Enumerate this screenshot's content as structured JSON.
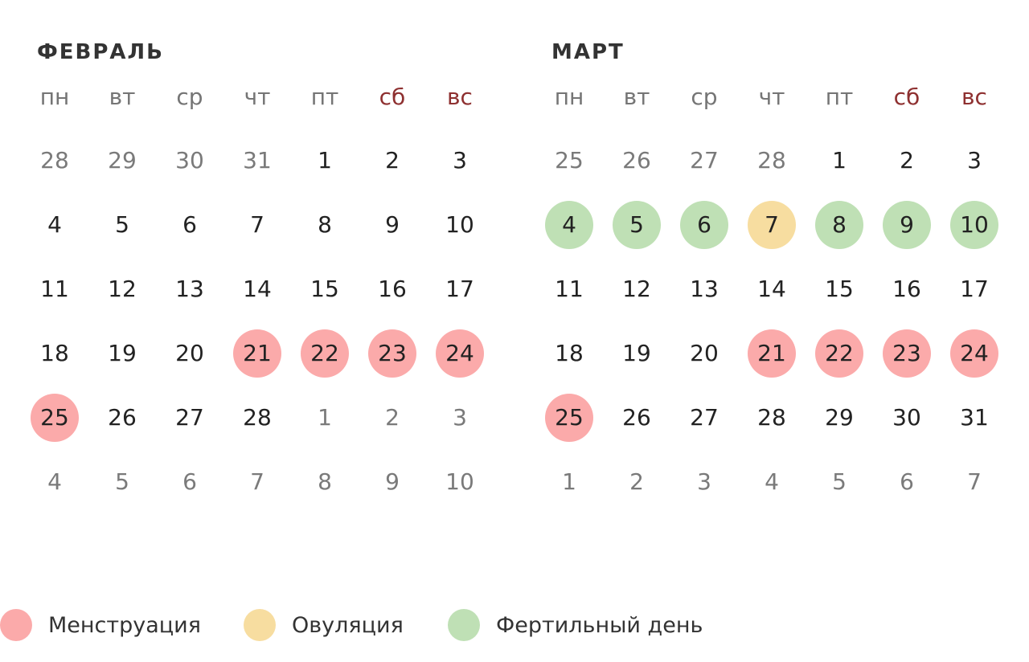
{
  "colors": {
    "menstruation": "#fbaaaa",
    "ovulation": "#f7dda0",
    "fertile": "#bfe0b5"
  },
  "months": [
    {
      "title": "ФЕВРАЛЬ",
      "weekdays": [
        "пн",
        "вт",
        "ср",
        "чт",
        "пт",
        "сб",
        "вс"
      ],
      "weeks": [
        [
          {
            "d": "28",
            "other": true
          },
          {
            "d": "29",
            "other": true
          },
          {
            "d": "30",
            "other": true
          },
          {
            "d": "31",
            "other": true
          },
          {
            "d": "1"
          },
          {
            "d": "2"
          },
          {
            "d": "3"
          }
        ],
        [
          {
            "d": "4"
          },
          {
            "d": "5"
          },
          {
            "d": "6"
          },
          {
            "d": "7"
          },
          {
            "d": "8"
          },
          {
            "d": "9"
          },
          {
            "d": "10"
          }
        ],
        [
          {
            "d": "11"
          },
          {
            "d": "12"
          },
          {
            "d": "13"
          },
          {
            "d": "14"
          },
          {
            "d": "15"
          },
          {
            "d": "16"
          },
          {
            "d": "17"
          }
        ],
        [
          {
            "d": "18"
          },
          {
            "d": "19"
          },
          {
            "d": "20"
          },
          {
            "d": "21",
            "mark": "menstruation"
          },
          {
            "d": "22",
            "mark": "menstruation"
          },
          {
            "d": "23",
            "mark": "menstruation"
          },
          {
            "d": "24",
            "mark": "menstruation"
          }
        ],
        [
          {
            "d": "25",
            "mark": "menstruation"
          },
          {
            "d": "26"
          },
          {
            "d": "27"
          },
          {
            "d": "28"
          },
          {
            "d": "1",
            "other": true
          },
          {
            "d": "2",
            "other": true
          },
          {
            "d": "3",
            "other": true
          }
        ],
        [
          {
            "d": "4",
            "other": true
          },
          {
            "d": "5",
            "other": true
          },
          {
            "d": "6",
            "other": true
          },
          {
            "d": "7",
            "other": true
          },
          {
            "d": "8",
            "other": true
          },
          {
            "d": "9",
            "other": true
          },
          {
            "d": "10",
            "other": true
          }
        ]
      ]
    },
    {
      "title": "МАРТ",
      "weekdays": [
        "пн",
        "вт",
        "ср",
        "чт",
        "пт",
        "сб",
        "вс"
      ],
      "weeks": [
        [
          {
            "d": "25",
            "other": true
          },
          {
            "d": "26",
            "other": true
          },
          {
            "d": "27",
            "other": true
          },
          {
            "d": "28",
            "other": true
          },
          {
            "d": "1"
          },
          {
            "d": "2"
          },
          {
            "d": "3"
          }
        ],
        [
          {
            "d": "4",
            "mark": "fertile"
          },
          {
            "d": "5",
            "mark": "fertile"
          },
          {
            "d": "6",
            "mark": "fertile"
          },
          {
            "d": "7",
            "mark": "ovulation"
          },
          {
            "d": "8",
            "mark": "fertile"
          },
          {
            "d": "9",
            "mark": "fertile"
          },
          {
            "d": "10",
            "mark": "fertile"
          }
        ],
        [
          {
            "d": "11"
          },
          {
            "d": "12"
          },
          {
            "d": "13"
          },
          {
            "d": "14"
          },
          {
            "d": "15"
          },
          {
            "d": "16"
          },
          {
            "d": "17"
          }
        ],
        [
          {
            "d": "18"
          },
          {
            "d": "19"
          },
          {
            "d": "20"
          },
          {
            "d": "21",
            "mark": "menstruation"
          },
          {
            "d": "22",
            "mark": "menstruation"
          },
          {
            "d": "23",
            "mark": "menstruation"
          },
          {
            "d": "24",
            "mark": "menstruation"
          }
        ],
        [
          {
            "d": "25",
            "mark": "menstruation"
          },
          {
            "d": "26"
          },
          {
            "d": "27"
          },
          {
            "d": "28"
          },
          {
            "d": "29"
          },
          {
            "d": "30"
          },
          {
            "d": "31"
          }
        ],
        [
          {
            "d": "1",
            "other": true
          },
          {
            "d": "2",
            "other": true
          },
          {
            "d": "3",
            "other": true
          },
          {
            "d": "4",
            "other": true
          },
          {
            "d": "5",
            "other": true
          },
          {
            "d": "6",
            "other": true
          },
          {
            "d": "7",
            "other": true
          }
        ]
      ]
    }
  ],
  "legend": [
    {
      "key": "menstruation",
      "label": "Менструация"
    },
    {
      "key": "ovulation",
      "label": "Овуляция"
    },
    {
      "key": "fertile",
      "label": "Фертильный день"
    }
  ]
}
